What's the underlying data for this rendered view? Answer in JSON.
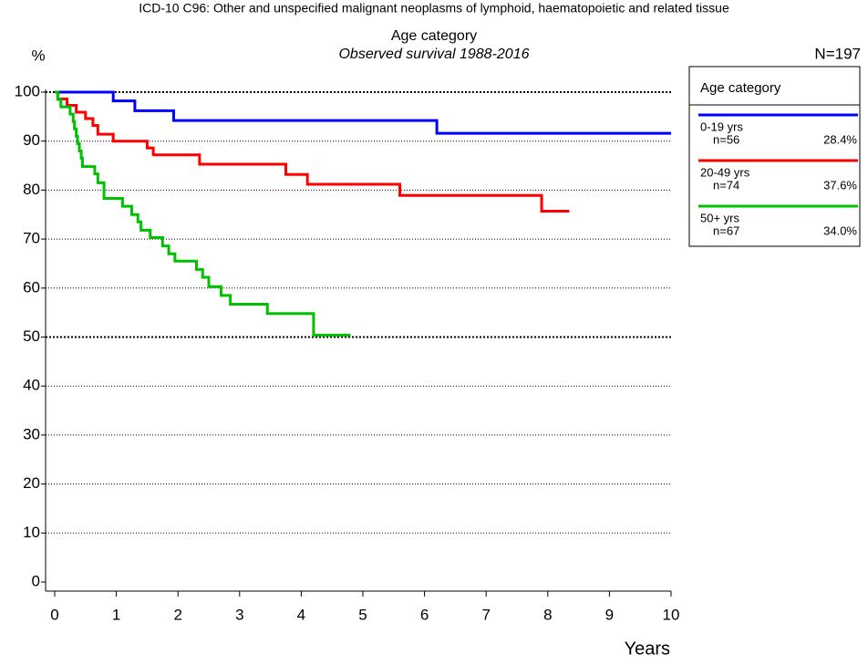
{
  "chart_data": {
    "type": "step",
    "title": "ICD-10 C96: Other and unspecified malignant neoplasms of lymphoid, haematopoietic and related tissue",
    "subtitle": "Age category",
    "subtitle2": "Observed survival 1988-2016",
    "y_label": "%",
    "x_label": "Years",
    "n_total": "N=197",
    "legend_title": "Age category",
    "xlim": [
      0,
      10
    ],
    "xticks": [
      0,
      1,
      2,
      3,
      4,
      5,
      6,
      7,
      8,
      9,
      10
    ],
    "ylim": [
      0,
      100
    ],
    "yticks": [
      0,
      10,
      20,
      30,
      40,
      50,
      60,
      70,
      80,
      90,
      100
    ],
    "grid": true,
    "bold_gridlines": [
      50,
      100
    ],
    "legend": "right",
    "series": [
      {
        "name": "0-19 yrs",
        "n": "n=56",
        "share": "28.4%",
        "color": "#0000ff",
        "x": [
          0,
          0.95,
          1.3,
          1.93,
          6.2,
          10
        ],
        "values": [
          100,
          98.2,
          96.2,
          94.2,
          91.6,
          91.6
        ]
      },
      {
        "name": "20-49 yrs",
        "n": "n=74",
        "share": "37.6%",
        "color": "#ff0000",
        "x": [
          0,
          0.05,
          0.2,
          0.35,
          0.5,
          0.62,
          0.7,
          0.95,
          1.5,
          1.6,
          2.35,
          3.75,
          4.1,
          5.6,
          7.9,
          8.35
        ],
        "values": [
          100,
          98.6,
          97.3,
          95.9,
          94.6,
          93.2,
          91.4,
          90,
          88.6,
          87.2,
          85.3,
          83.2,
          81.2,
          78.9,
          75.7,
          75.7
        ]
      },
      {
        "name": "50+ yrs",
        "n": "n=67",
        "share": "34.0%",
        "color": "#00c000",
        "x": [
          0,
          0.05,
          0.1,
          0.25,
          0.3,
          0.32,
          0.35,
          0.37,
          0.4,
          0.43,
          0.45,
          0.65,
          0.7,
          0.8,
          1.1,
          1.25,
          1.35,
          1.4,
          1.55,
          1.75,
          1.85,
          1.95,
          2.3,
          2.4,
          2.5,
          2.7,
          2.85,
          3.45,
          4.2,
          4.8
        ],
        "values": [
          100,
          98.5,
          97,
          95.5,
          94,
          92.5,
          91,
          89.5,
          88,
          86.5,
          84.8,
          83.3,
          81.5,
          78.3,
          76.7,
          75,
          73.5,
          71.8,
          70.3,
          68.6,
          67,
          65.5,
          63.8,
          62.2,
          60.3,
          58.5,
          56.7,
          54.8,
          50.4,
          50.4
        ]
      }
    ]
  }
}
